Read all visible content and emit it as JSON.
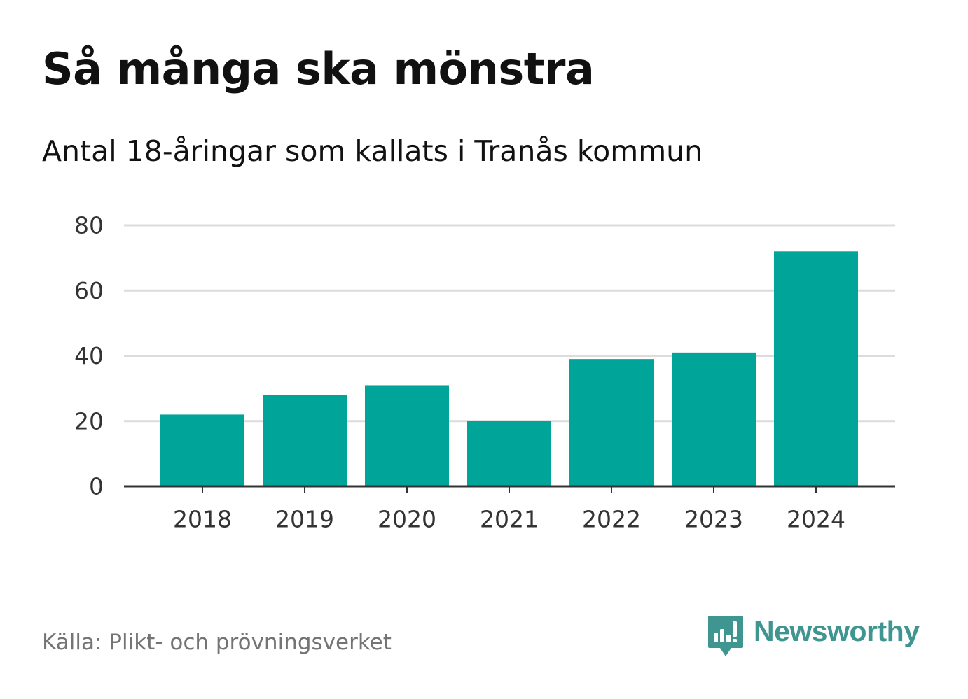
{
  "title": "Så många ska mönstra",
  "subtitle": "Antal 18-åringar som kallats i Tranås kommun",
  "source": "Källa: Plikt- och prövningsverket",
  "brand": {
    "name": "Newsworthy",
    "icon": "newsworthy-logo-icon",
    "color": "#3f9690"
  },
  "colors": {
    "bar": "#00a499",
    "grid": "#dcdcdc",
    "axis": "#333333"
  },
  "chart_data": {
    "type": "bar",
    "categories": [
      "2018",
      "2019",
      "2020",
      "2021",
      "2022",
      "2023",
      "2024"
    ],
    "values": [
      22,
      28,
      31,
      20,
      39,
      41,
      72
    ],
    "yticks": [
      0,
      20,
      40,
      60,
      80
    ],
    "ylim": [
      0,
      80
    ],
    "grid": true,
    "legend": "none"
  }
}
